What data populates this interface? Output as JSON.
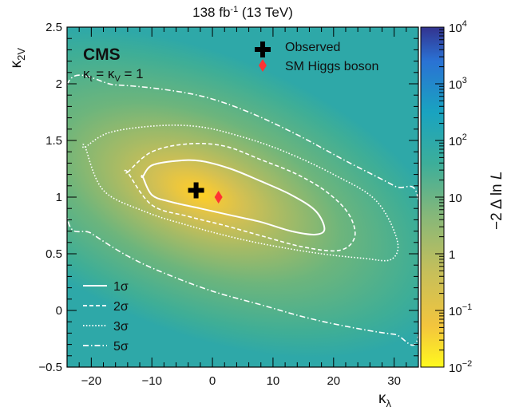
{
  "chart_data": {
    "type": "heatmap",
    "title": "138 fb-1 (13 TeV)",
    "title_parts": {
      "lumi": "138 fb",
      "lumi_exp": "-1",
      "energy": " (13 TeV)"
    },
    "experiment": "CMS",
    "condition": {
      "lhs_main": "κ",
      "lhs_sub": "t",
      "eq1": " = κ",
      "mid_sub": "V",
      "eq2": " = 1"
    },
    "xlabel": {
      "main": "κ",
      "sub": "λ"
    },
    "ylabel": {
      "main": "κ",
      "sub": "2V"
    },
    "colorbar_label": "−2 Δ ln L",
    "colorbar_label_parts": {
      "main": "−2 Δ ln ",
      "italic": "L"
    },
    "xlim": [
      -24,
      34
    ],
    "ylim": [
      -0.5,
      2.5
    ],
    "x_ticks": [
      -20,
      -10,
      0,
      10,
      20,
      30
    ],
    "x_tick_labels": [
      "−20",
      "−10",
      "0",
      "10",
      "20",
      "30"
    ],
    "y_ticks": [
      -0.5,
      0,
      0.5,
      1,
      1.5,
      2,
      2.5
    ],
    "y_tick_labels": [
      "−0.5",
      "0",
      "0.5",
      "1",
      "1.5",
      "2",
      "2.5"
    ],
    "z_scale": "log",
    "z_range": [
      0.01,
      10000
    ],
    "colorbar_ticks": [
      {
        "value": 0.01,
        "base": "10",
        "exp": "−2"
      },
      {
        "value": 0.1,
        "base": "10",
        "exp": "−1"
      },
      {
        "value": 1,
        "base": "1",
        "exp": ""
      },
      {
        "value": 10,
        "base": "10",
        "exp": ""
      },
      {
        "value": 100,
        "base": "10",
        "exp": "2"
      },
      {
        "value": 1000,
        "base": "10",
        "exp": "3"
      },
      {
        "value": 10000,
        "base": "10",
        "exp": "4"
      }
    ],
    "points": [
      {
        "name": "Observed",
        "x": -2.7,
        "y": 1.06,
        "marker": "cross",
        "color": "#000000"
      },
      {
        "name": "SM Higgs boson",
        "x": 1.0,
        "y": 1.0,
        "marker": "diamond",
        "color": "#ff3333"
      }
    ],
    "contours": [
      {
        "name": "1σ",
        "label": "1σ",
        "style": "solid",
        "x": [
          -11.5,
          -10,
          -6,
          -2,
          3,
          8,
          13,
          17,
          18.5,
          17,
          13,
          8,
          3,
          -2,
          -7,
          -10,
          -11.5
        ],
        "y": [
          1.18,
          1.28,
          1.32,
          1.32,
          1.25,
          1.14,
          1.02,
          0.88,
          0.72,
          0.67,
          0.7,
          0.78,
          0.84,
          0.9,
          0.96,
          1.02,
          1.18
        ]
      },
      {
        "name": "2σ",
        "label": "2σ",
        "style": "dashed",
        "x": [
          -14,
          -10,
          -4,
          2,
          8,
          14,
          19,
          22.5,
          23.5,
          21,
          15,
          8,
          2,
          -4,
          -10,
          -14
        ],
        "y": [
          1.22,
          1.4,
          1.47,
          1.45,
          1.33,
          1.2,
          1.04,
          0.85,
          0.65,
          0.53,
          0.56,
          0.66,
          0.75,
          0.83,
          0.93,
          1.22
        ]
      },
      {
        "name": "3σ",
        "label": "3σ",
        "style": "dotted",
        "x": [
          -21,
          -17,
          -9,
          -2,
          5,
          12,
          20,
          27,
          30.5,
          29.5,
          25,
          18,
          10,
          3,
          -4,
          -11,
          -18,
          -21
        ],
        "y": [
          1.44,
          1.57,
          1.63,
          1.62,
          1.53,
          1.4,
          1.2,
          0.97,
          0.62,
          0.45,
          0.46,
          0.5,
          0.57,
          0.65,
          0.75,
          0.87,
          1.06,
          1.44
        ]
      },
      {
        "name": "5σ",
        "label": "5σ",
        "style": "dashdot",
        "x": [
          -24,
          -16,
          -8,
          -1,
          6,
          14,
          22,
          30,
          34,
          34,
          30,
          24,
          16,
          8,
          0,
          -8,
          -14,
          -20,
          -24
        ],
        "y": [
          1.99,
          1.99,
          1.95,
          1.88,
          1.75,
          1.55,
          1.32,
          1.1,
          0.97,
          -0.22,
          -0.21,
          -0.16,
          -0.07,
          0.05,
          0.17,
          0.33,
          0.48,
          0.68,
          0.83
        ]
      }
    ],
    "legend": {
      "points_placement": "top-right",
      "contours_placement": "bottom-left"
    },
    "grid": false
  }
}
